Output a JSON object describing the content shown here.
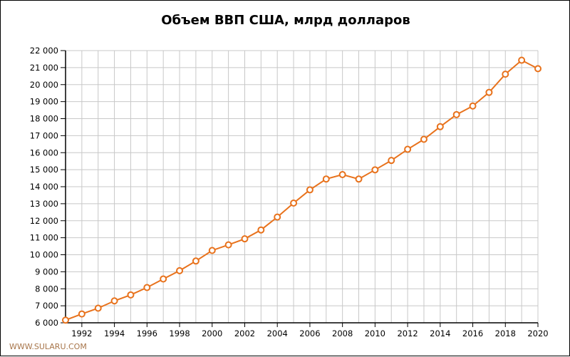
{
  "chart": {
    "title": "Объем ВВП США, млрд долларов",
    "footer": "WWW.SULARU.COM",
    "line_color": "#e8721c",
    "grid_color": "#c8c8c8"
  },
  "chart_data": {
    "type": "line",
    "title": "Объем ВВП США, млрд долларов",
    "xlabel": "",
    "ylabel": "",
    "x": [
      1991,
      1992,
      1993,
      1994,
      1995,
      1996,
      1997,
      1998,
      1999,
      2000,
      2001,
      2002,
      2003,
      2004,
      2005,
      2006,
      2007,
      2008,
      2009,
      2010,
      2011,
      2012,
      2013,
      2014,
      2015,
      2016,
      2017,
      2018,
      2019,
      2020
    ],
    "series": [
      {
        "name": "ВВП США",
        "values": [
          6158,
          6520,
          6859,
          7287,
          7640,
          8073,
          8578,
          9063,
          9631,
          10252,
          10582,
          10936,
          11458,
          12214,
          13037,
          13815,
          14452,
          14713,
          14449,
          14992,
          15543,
          16197,
          16785,
          17527,
          18238,
          18745,
          19543,
          20612,
          21433,
          20937
        ]
      }
    ],
    "xlim": [
      1991,
      2020
    ],
    "ylim": [
      6000,
      22000
    ],
    "x_tick_labels": [
      "1992",
      "1994",
      "1996",
      "1998",
      "2000",
      "2002",
      "2004",
      "2006",
      "2008",
      "2010",
      "2012",
      "2014",
      "2016",
      "2018",
      "2020"
    ],
    "y_tick_labels": [
      "6 000",
      "7 000",
      "8 000",
      "9 000",
      "10 000",
      "11 000",
      "12 000",
      "13 000",
      "14 000",
      "15 000",
      "16 000",
      "17 000",
      "18 000",
      "19 000",
      "20 000",
      "21 000",
      "22 000"
    ],
    "grid": true,
    "legend": "none"
  }
}
